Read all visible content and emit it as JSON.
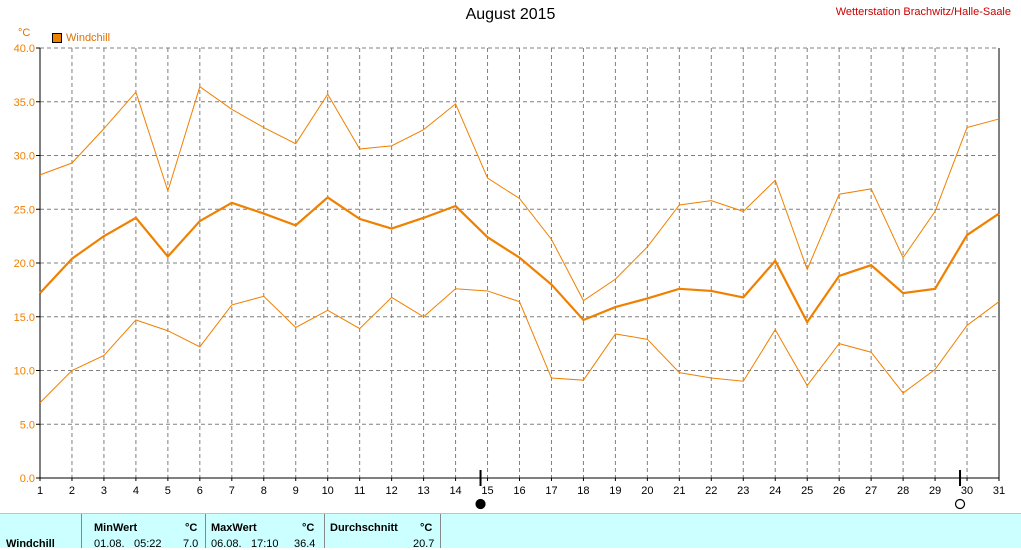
{
  "header": {
    "title": "August 2015",
    "station": "Wetterstation Brachwitz/Halle-Saale",
    "unit": "°C"
  },
  "chart_data": {
    "type": "line",
    "title": "August 2015",
    "ylabel": "°C",
    "ylim": [
      0,
      40
    ],
    "ytick_labels": [
      "0.0",
      "5.0",
      "10.0",
      "15.0",
      "20.0",
      "25.0",
      "30.0",
      "35.0",
      "40.0"
    ],
    "x": [
      1,
      2,
      3,
      4,
      5,
      6,
      7,
      8,
      9,
      10,
      11,
      12,
      13,
      14,
      15,
      16,
      17,
      18,
      19,
      20,
      21,
      22,
      23,
      24,
      25,
      26,
      27,
      28,
      29,
      30,
      31
    ],
    "legend": [
      "Windchill"
    ],
    "grid": true,
    "colors": {
      "line": "#f08000",
      "axis": "#000000",
      "grid": "#808080"
    },
    "series": [
      {
        "name": "Windchill",
        "role": "mean",
        "values": [
          17.2,
          20.4,
          22.5,
          24.2,
          20.6,
          23.9,
          25.6,
          24.6,
          23.5,
          26.1,
          24.1,
          23.2,
          24.2,
          25.3,
          22.4,
          20.5,
          18.0,
          14.7,
          15.9,
          16.7,
          17.6,
          17.4,
          16.8,
          20.2,
          14.5,
          18.8,
          19.8,
          17.2,
          17.6,
          22.6,
          24.6
        ]
      },
      {
        "role": "max",
        "values": [
          28.2,
          29.3,
          32.5,
          35.9,
          26.7,
          36.4,
          34.3,
          32.6,
          31.1,
          35.7,
          30.6,
          30.9,
          32.4,
          34.8,
          27.9,
          26.0,
          22.2,
          16.5,
          18.5,
          21.5,
          25.4,
          25.8,
          24.8,
          27.7,
          19.4,
          26.4,
          26.9,
          20.5,
          24.8,
          32.6,
          33.4
        ]
      },
      {
        "role": "min",
        "values": [
          7.0,
          10.0,
          11.4,
          14.7,
          13.7,
          12.2,
          16.1,
          16.9,
          14.0,
          15.6,
          13.9,
          16.8,
          15.0,
          17.6,
          17.4,
          16.4,
          9.3,
          9.1,
          13.4,
          12.9,
          9.8,
          9.3,
          9.0,
          13.8,
          8.6,
          12.5,
          11.7,
          7.9,
          10.1,
          14.2,
          16.4
        ]
      }
    ],
    "markers": [
      {
        "x": 15,
        "symbol": "new-moon"
      },
      {
        "x": 30,
        "symbol": "full-moon"
      }
    ]
  },
  "stats": {
    "label": "Windchill",
    "min": {
      "header": "MinWert",
      "unit": "°C",
      "date": "01.08.",
      "time": "05:22",
      "value": "7.0"
    },
    "max": {
      "header": "MaxWert",
      "unit": "°C",
      "date": "06.08.",
      "time": "17:10",
      "value": "36.4"
    },
    "avg": {
      "header": "Durchschnitt",
      "unit": "°C",
      "value": "20.7"
    }
  }
}
